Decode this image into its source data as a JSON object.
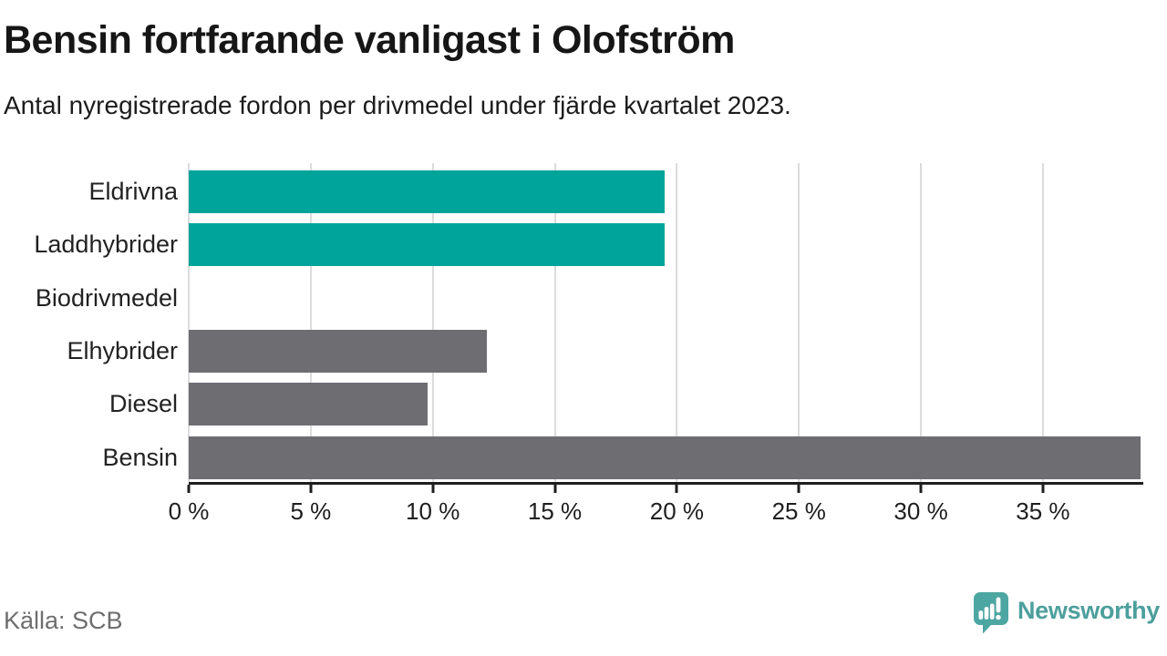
{
  "header": {
    "title": "Bensin fortfarande vanligast i Olofström",
    "subtitle": "Antal nyregistrerade fordon per drivmedel under fjärde kvartalet 2023."
  },
  "chart_data": {
    "type": "bar",
    "orientation": "horizontal",
    "title": "Bensin fortfarande vanligast i Olofström",
    "subtitle": "Antal nyregistrerade fordon per drivmedel under fjärde kvartalet 2023.",
    "categories": [
      "Eldrivna",
      "Laddhybrider",
      "Biodrivmedel",
      "Elhybrider",
      "Diesel",
      "Bensin"
    ],
    "values": [
      19.5,
      19.5,
      0,
      12.2,
      9.8,
      39
    ],
    "unit": "%",
    "xlim": [
      0,
      39
    ],
    "x_ticks": [
      0,
      5,
      10,
      15,
      20,
      25,
      30,
      35
    ],
    "x_tick_labels": [
      "0 %",
      "5 %",
      "10 %",
      "15 %",
      "20 %",
      "25 %",
      "30 %",
      "35 %"
    ],
    "grid": true,
    "legend": false,
    "bar_colors": [
      "#00A49B",
      "#00A49B",
      "#00A49B",
      "#6E6D72",
      "#6E6D72",
      "#6E6D72"
    ]
  },
  "colors": {
    "teal_bar": "#00A49B",
    "gray_bar": "#6E6D72",
    "gridline": "#dcdcdc",
    "axis": "#1e1e1e",
    "muted_text": "#6e6e6e",
    "logo_teal": "#4DA6A2",
    "wordmark_teal": "#4C9F9C"
  },
  "footer": {
    "source": "Källa: SCB",
    "brand": "Newsworthy"
  }
}
